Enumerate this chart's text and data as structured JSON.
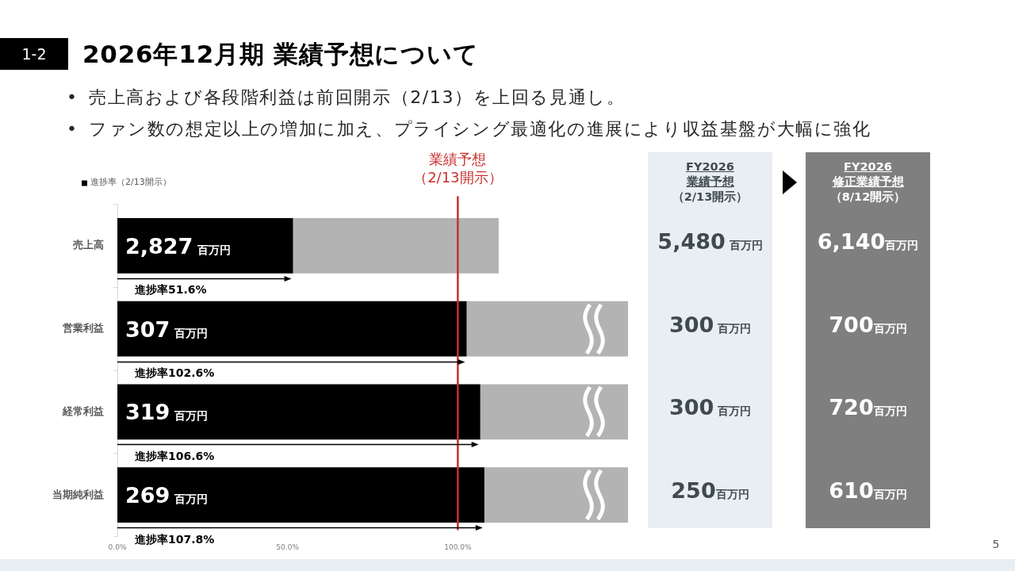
{
  "chart_data": [
    {
      "type": "bar",
      "orientation": "horizontal",
      "stacked": true,
      "title": "2026年12月期 業績予想について",
      "subtitle": "• 売上高および各段階利益は前回開示（2/13）を上回る見通し。\n• ファン数の想定以上の増加に加え、プライシング最適化の進展により収益基盤が大幅に強化",
      "categories": [
        "売上高",
        "営業利益",
        "経常利益",
        "当期純利益"
      ],
      "series": [
        {
          "name": "進捗率（2/13開示）",
          "color": "#000000",
          "values": [
            51.6,
            102.6,
            106.6,
            107.8
          ]
        },
        {
          "color": "#b3b3b3",
          "values": [
            60.4,
            47.4,
            43.4,
            42.2
          ]
        }
      ],
      "xlim": [
        0,
        150
      ],
      "xticks": [
        {
          "value": 0,
          "label": "0.0%"
        },
        {
          "value": 50,
          "label": "50.0%"
        },
        {
          "value": 100,
          "label": "100.0%"
        }
      ],
      "ref_lines": [
        {
          "axis": "x",
          "value": 100,
          "label": "業績予想（2/13開示）",
          "color": "#c9302c"
        }
      ],
      "legend": "top left",
      "annotations": [
        "1-2",
        "5",
        "2,827 百万円",
        "307 百万円",
        "319 百万円",
        "269 百万円",
        "進捗率51.6%",
        "進捗率102.6%",
        "進捗率106.6%",
        "進捗率107.8%"
      ]
    },
    {
      "type": "other",
      "title": "FY2026\n業績予想",
      "subtitle": "（2/13開示）",
      "color": "#e9eef2",
      "annotations": [
        "5,480 百万円",
        "300 百万円",
        "300 百万円",
        "250百万円"
      ]
    },
    {
      "type": "other",
      "title": "FY2026\n修正業績予想",
      "subtitle": "（8/12開示）",
      "color": "#7f7f7f",
      "annotations": [
        "6,140百万円",
        "700百万円",
        "720百万円",
        "610百万円"
      ]
    }
  ]
}
